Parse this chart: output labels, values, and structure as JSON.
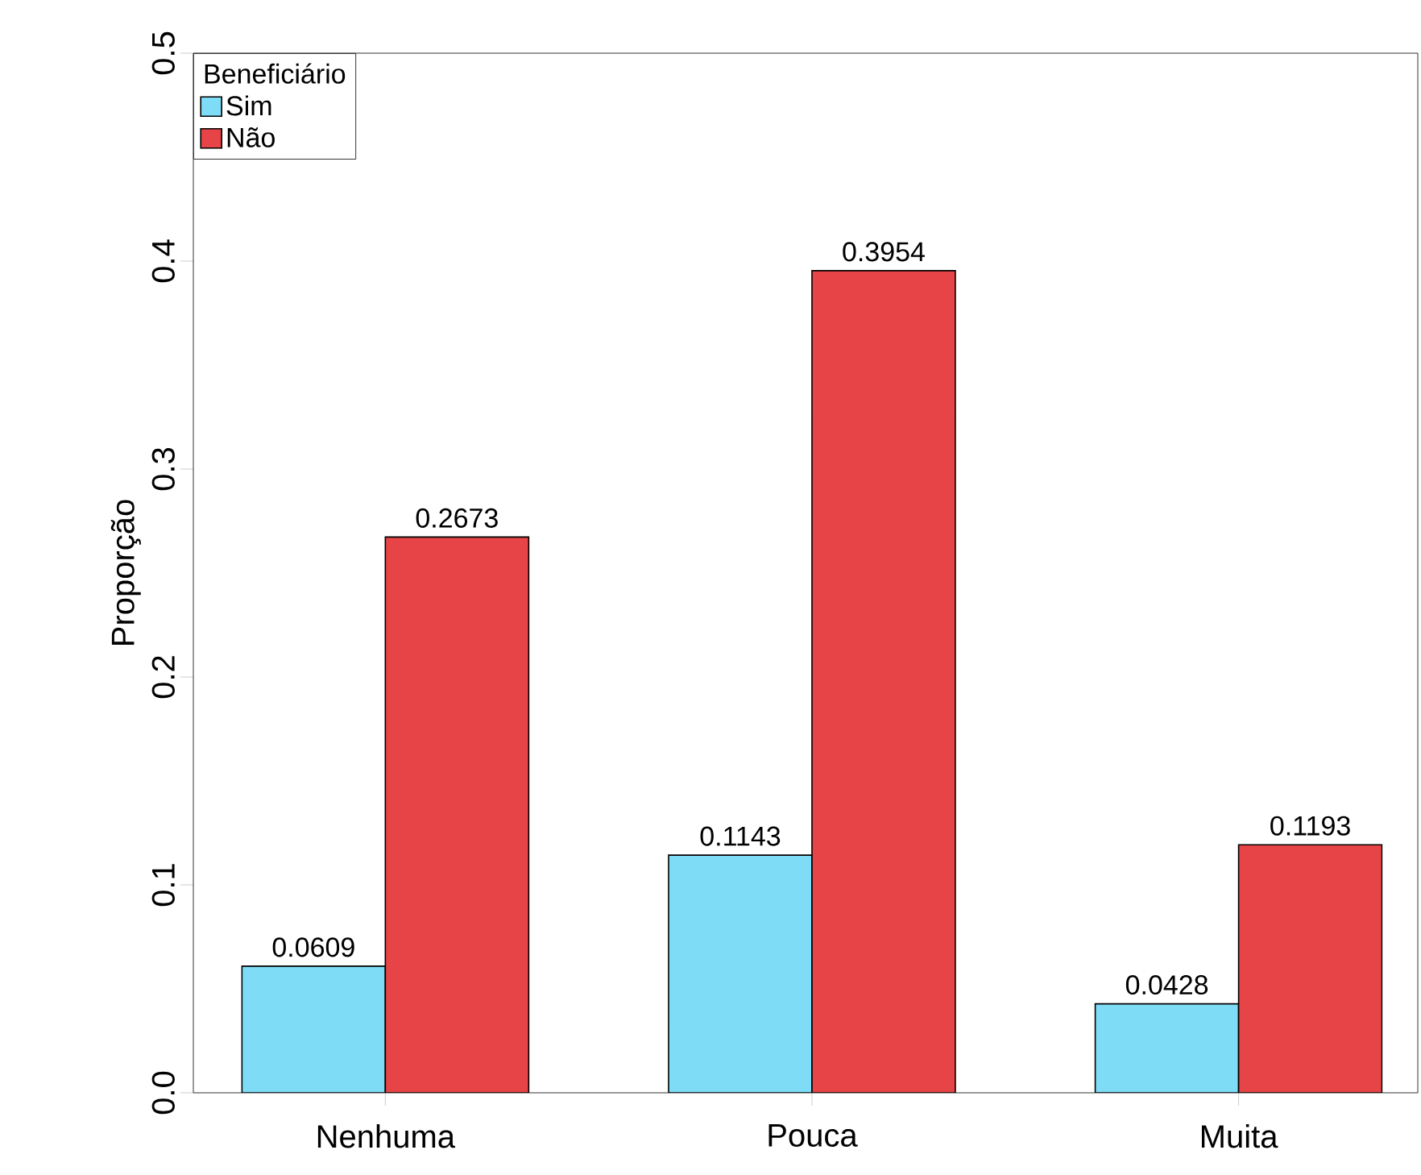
{
  "chart_data": {
    "type": "bar",
    "ylabel": "Proporção",
    "legend_title": "Beneficiário",
    "categories": [
      "Nenhuma",
      "Pouca",
      "Muita"
    ],
    "series": [
      {
        "name": "Sim",
        "color": "#7fdcf6",
        "values": [
          0.0609,
          0.1143,
          0.0428
        ]
      },
      {
        "name": "Não",
        "color": "#e64446",
        "values": [
          0.2673,
          0.3954,
          0.1193
        ]
      }
    ],
    "ylim": [
      0,
      0.5
    ],
    "yticks": [
      {
        "value": 0,
        "label": "0.0"
      },
      0.1,
      0.2,
      0.3,
      0.4,
      0.5
    ],
    "data_labels": true,
    "grid": false,
    "legend": "top left"
  }
}
